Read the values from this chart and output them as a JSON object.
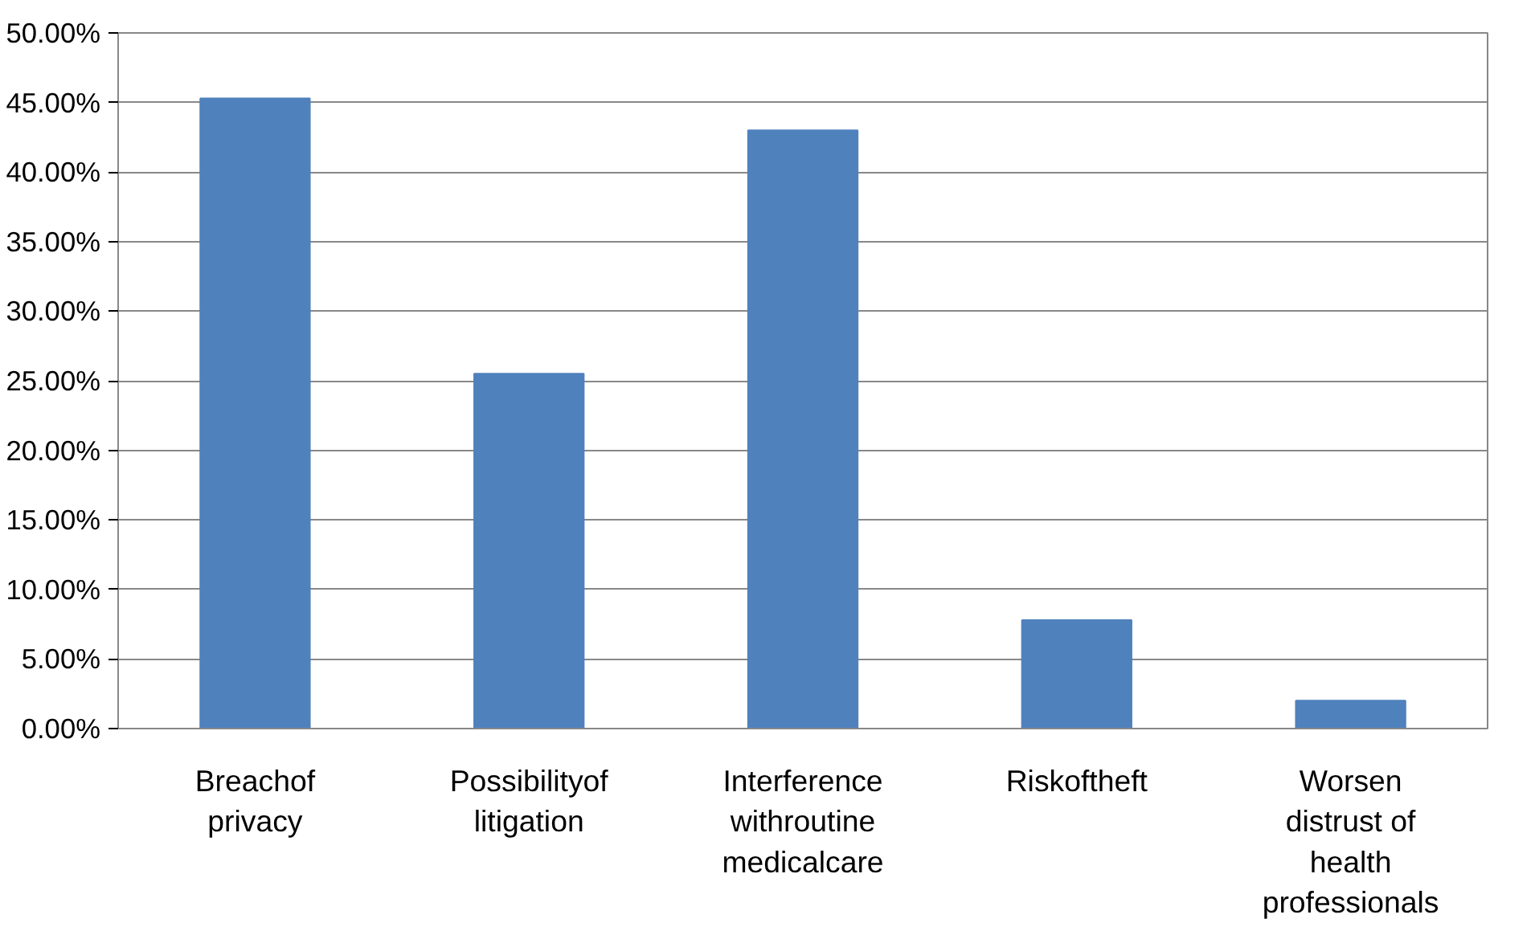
{
  "chart_data": {
    "type": "bar",
    "categories": [
      "Breachof privacy",
      "Possibilityof litigation",
      "Interference withroutine medicalcare",
      "Riskoftheft",
      "Worsen distrust of health professionals"
    ],
    "values": [
      45.3,
      25.5,
      43.0,
      7.8,
      2.0
    ],
    "color": "#4f81bd",
    "ylim": [
      0,
      50
    ],
    "yticks": [
      {
        "value": 0,
        "label": "0.00%"
      },
      {
        "value": 5,
        "label": "5.00%"
      },
      {
        "value": 10,
        "label": "10.00%"
      },
      {
        "value": 15,
        "label": "15.00%"
      },
      {
        "value": 20,
        "label": "20.00%"
      },
      {
        "value": 25,
        "label": "25.00%"
      },
      {
        "value": 30,
        "label": "30.00%"
      },
      {
        "value": 35,
        "label": "35.00%"
      },
      {
        "value": 40,
        "label": "40.00%"
      },
      {
        "value": 45,
        "label": "45.00%"
      },
      {
        "value": 50,
        "label": "50.00%"
      }
    ],
    "grid": "y"
  }
}
